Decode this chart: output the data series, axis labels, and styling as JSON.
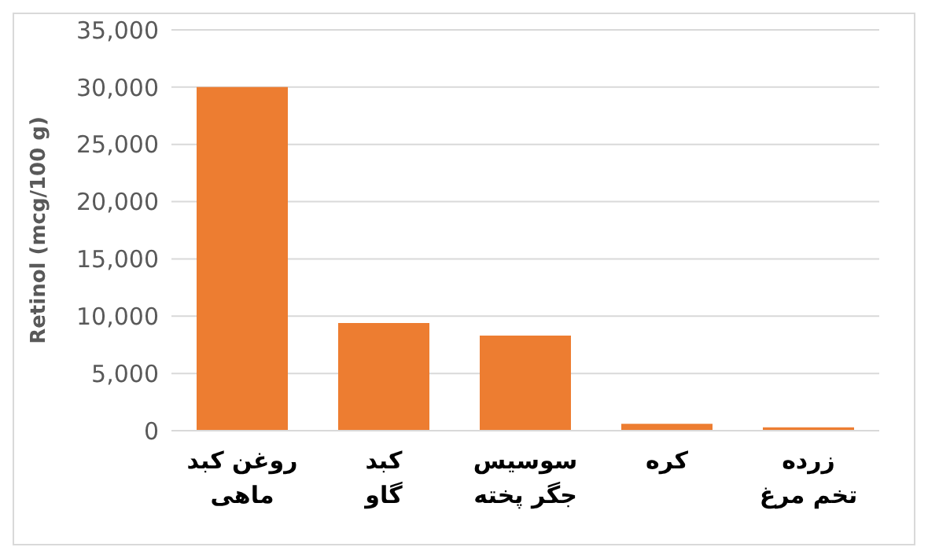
{
  "chart_data": {
    "type": "bar",
    "ylabel": "Retinol (mcg/100 g)",
    "categories": [
      "روغن کبد\nماهی",
      "کبد\nگاو",
      "سوسیس\nجگر پخته",
      "کره",
      "زرده\nتخم مرغ"
    ],
    "values": [
      30000,
      9400,
      8300,
      600,
      300
    ],
    "color": "#ed7d31",
    "ylim": [
      0,
      35000
    ],
    "yticks": [
      {
        "value": 0,
        "label": "0"
      },
      {
        "value": 5000,
        "label": "5,000"
      },
      {
        "value": 10000,
        "label": "10,000"
      },
      {
        "value": 15000,
        "label": "15,000"
      },
      {
        "value": 20000,
        "label": "20,000"
      },
      {
        "value": 25000,
        "label": "25,000"
      },
      {
        "value": 30000,
        "label": "30,000"
      },
      {
        "value": 35000,
        "label": "35,000"
      }
    ],
    "grid": "y"
  }
}
